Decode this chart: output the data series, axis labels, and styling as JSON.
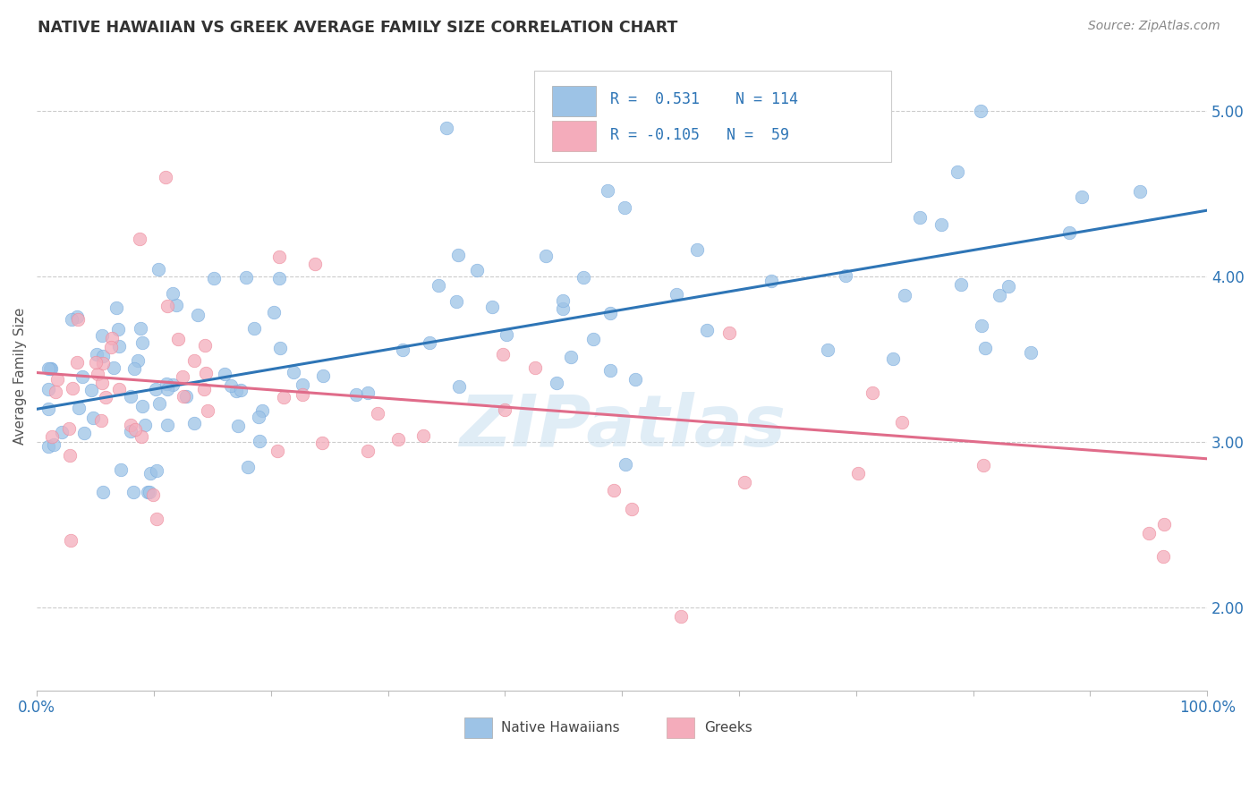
{
  "title": "NATIVE HAWAIIAN VS GREEK AVERAGE FAMILY SIZE CORRELATION CHART",
  "source_text": "Source: ZipAtlas.com",
  "ylabel": "Average Family Size",
  "xlim": [
    0,
    100
  ],
  "ylim": [
    1.5,
    5.3
  ],
  "yticks_right": [
    2.0,
    3.0,
    4.0,
    5.0
  ],
  "blue_color": "#9DC3E6",
  "pink_color": "#F4ACBB",
  "blue_edge_color": "#7aace0",
  "pink_edge_color": "#ee8899",
  "blue_line_color": "#2E75B6",
  "pink_line_color": "#E06C8A",
  "legend_text_color": "#2E75B6",
  "watermark": "ZIPatlas",
  "background_color": "#ffffff",
  "blue_R": 0.531,
  "blue_N": 114,
  "pink_R": -0.105,
  "pink_N": 59,
  "blue_intercept": 3.18,
  "blue_slope": 0.013,
  "pink_intercept": 3.42,
  "pink_slope": -0.0055
}
